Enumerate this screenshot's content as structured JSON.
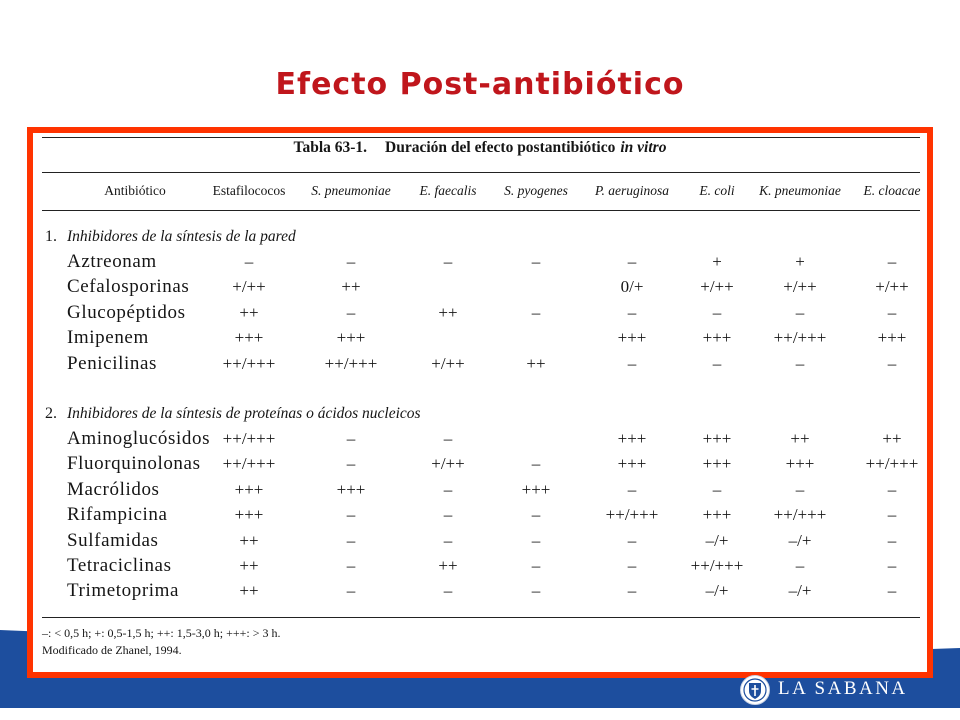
{
  "slide": {
    "title": "Efecto Post-antibiótico"
  },
  "table": {
    "caption_number": "Tabla 63-1.",
    "caption_text": "Duración del efecto postantibiótico",
    "caption_italic": "in vitro",
    "columns": [
      "Antibiótico",
      "Estafilococos",
      "S. pneumoniae",
      "E. faecalis",
      "S. pyogenes",
      "P. aeruginosa",
      "E. coli",
      "K. pneumoniae",
      "E. cloacae"
    ],
    "sections": [
      {
        "number": "1.",
        "heading": "Inhibidores de la síntesis de la pared",
        "rows": [
          {
            "name": "Aztreonam",
            "values": [
              "–",
              "–",
              "–",
              "–",
              "–",
              "+",
              "+",
              "–"
            ]
          },
          {
            "name": "Cefalosporinas",
            "values": [
              "+/++",
              "++",
              "",
              "",
              "0/+",
              "+/++",
              "+/++",
              "+/++"
            ]
          },
          {
            "name": "Glucopéptidos",
            "values": [
              "++",
              "–",
              "++",
              "–",
              "–",
              "–",
              "–",
              "–"
            ]
          },
          {
            "name": "Imipenem",
            "values": [
              "+++",
              "+++",
              "",
              "",
              "+++",
              "+++",
              "++/+++",
              "+++"
            ]
          },
          {
            "name": "Penicilinas",
            "values": [
              "++/+++",
              "++/+++",
              "+/++",
              "++",
              "–",
              "–",
              "–",
              "–"
            ]
          }
        ]
      },
      {
        "number": "2.",
        "heading": "Inhibidores de la síntesis de proteínas o ácidos nucleicos",
        "rows": [
          {
            "name": "Aminoglucósidos",
            "values": [
              "++/+++",
              "–",
              "–",
              "",
              "+++",
              "+++",
              "++",
              "++"
            ]
          },
          {
            "name": "Fluorquinolonas",
            "values": [
              "++/+++",
              "–",
              "+/++",
              "–",
              "+++",
              "+++",
              "+++",
              "++/+++"
            ]
          },
          {
            "name": "Macrólidos",
            "values": [
              "+++",
              "+++",
              "–",
              "+++",
              "–",
              "–",
              "–",
              "–"
            ]
          },
          {
            "name": "Rifampicina",
            "values": [
              "+++",
              "–",
              "–",
              "–",
              "++/+++",
              "+++",
              "++/+++",
              "–"
            ]
          },
          {
            "name": "Sulfamidas",
            "values": [
              "++",
              "–",
              "–",
              "–",
              "–",
              "–/+",
              "–/+",
              "–"
            ]
          },
          {
            "name": "Tetraciclinas",
            "values": [
              "++",
              "–",
              "++",
              "–",
              "–",
              "++/+++",
              "–",
              "–"
            ]
          },
          {
            "name": "Trimetoprima",
            "values": [
              "++",
              "–",
              "–",
              "–",
              "–",
              "–/+",
              "–/+",
              "–"
            ]
          }
        ]
      }
    ],
    "footnote_legend": "–: < 0,5 h; +: 0,5-1,5 h; ++: 1,5-3,0 h; +++: > 3 h.",
    "footnote_source": "Modificado de Zhanel, 1994."
  },
  "logo": {
    "text": "LA SABANA",
    "icon": "university-seal-icon"
  },
  "colors": {
    "title": "#c0161c",
    "frame": "#ff3300",
    "band": "#1d4e9e"
  }
}
